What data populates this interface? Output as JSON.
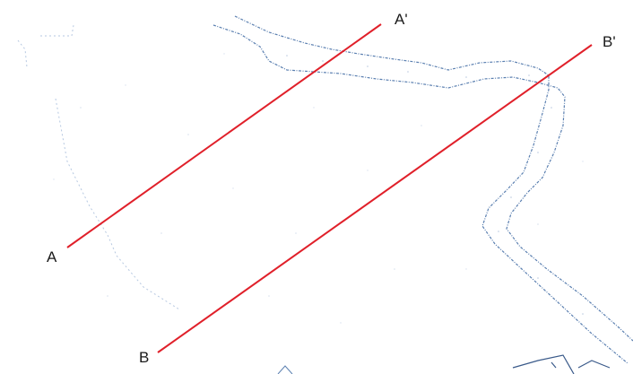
{
  "map": {
    "section_lines": [
      {
        "start_label": "A",
        "end_label": "A'"
      },
      {
        "start_label": "B",
        "end_label": "B'"
      }
    ]
  },
  "colors": {
    "section_line": "#e0202a",
    "river_outline": "#5a7fb0",
    "faint_detail": "#9db4d4",
    "background": "#ffffff",
    "label_text": "#1a1a1a"
  }
}
